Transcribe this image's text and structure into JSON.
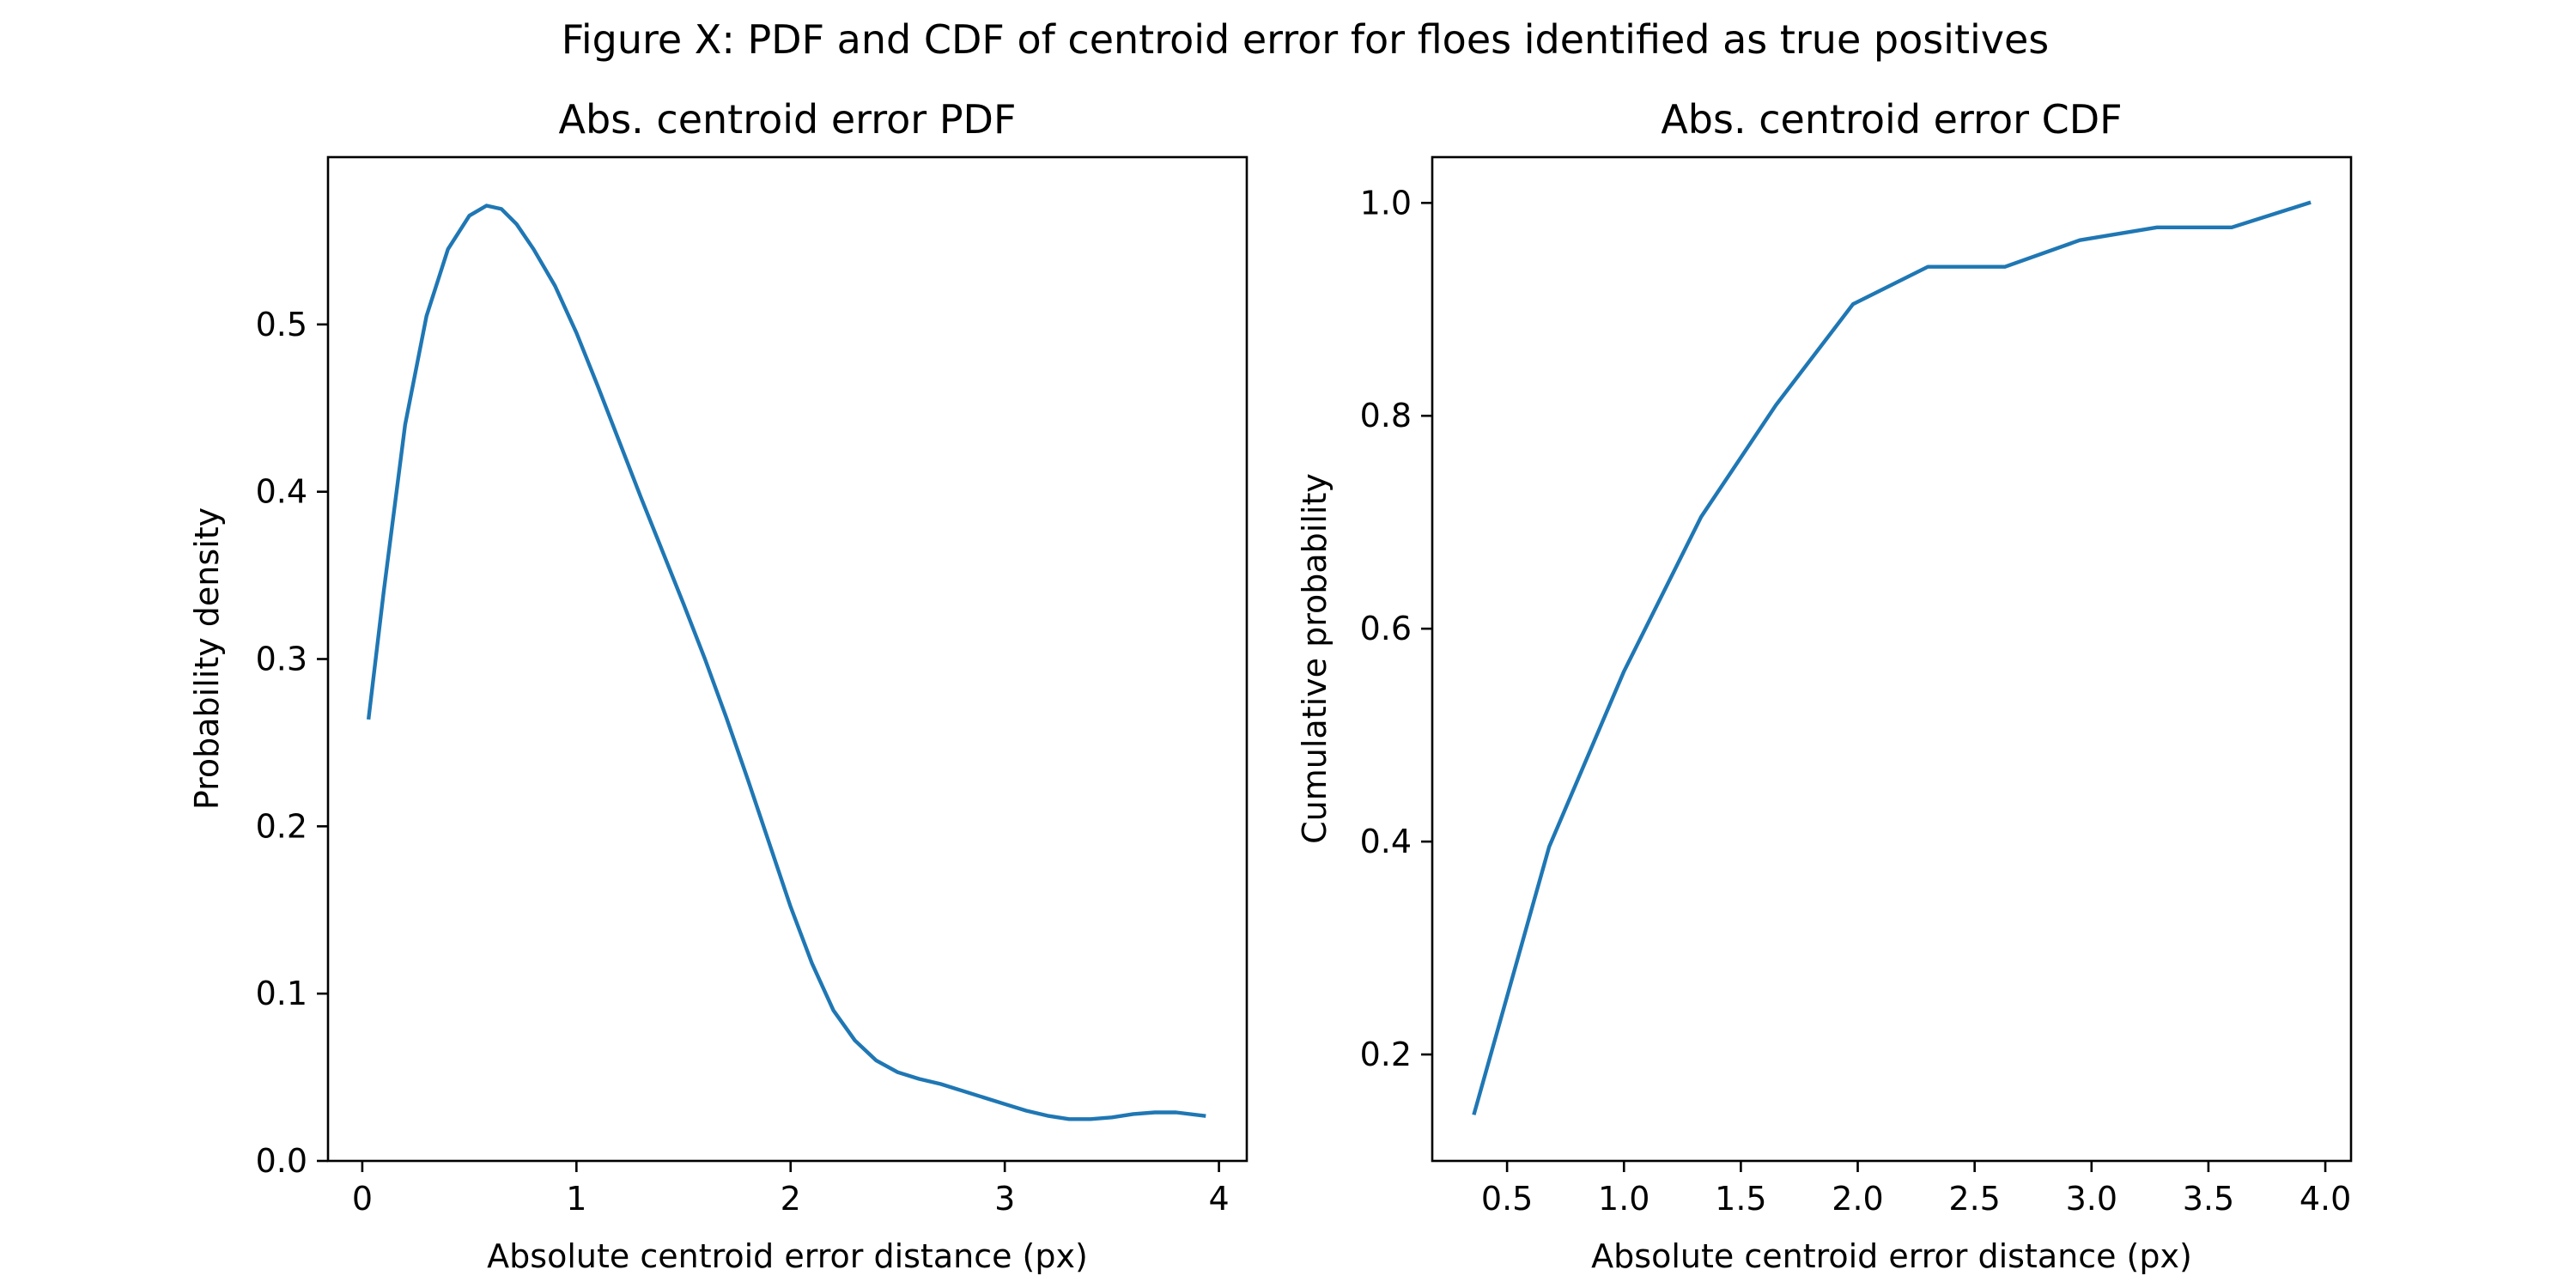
{
  "figure_title": "Figure X: PDF and CDF of centroid error for floes identified as true positives",
  "colors": {
    "series": "#1f77b4"
  },
  "chart_data": [
    {
      "type": "line",
      "title": "Abs. centroid error PDF",
      "xlabel": "Absolute centroid error distance (px)",
      "ylabel": "Probability density",
      "xlim": [
        -0.16,
        4.13
      ],
      "ylim": [
        0.0,
        0.6
      ],
      "xticks": [
        0,
        1,
        2,
        3,
        4
      ],
      "xtick_labels": [
        "0",
        "1",
        "2",
        "3",
        "4"
      ],
      "yticks": [
        0.0,
        0.1,
        0.2,
        0.3,
        0.4,
        0.5
      ],
      "ytick_labels": [
        "0.0",
        "0.1",
        "0.2",
        "0.3",
        "0.4",
        "0.5"
      ],
      "grid": false,
      "series": [
        {
          "x": [
            0.03,
            0.1,
            0.2,
            0.3,
            0.4,
            0.5,
            0.58,
            0.65,
            0.72,
            0.8,
            0.9,
            1.0,
            1.1,
            1.2,
            1.3,
            1.4,
            1.5,
            1.6,
            1.7,
            1.8,
            1.9,
            2.0,
            2.1,
            2.2,
            2.3,
            2.4,
            2.5,
            2.6,
            2.7,
            2.8,
            2.9,
            3.0,
            3.1,
            3.2,
            3.3,
            3.4,
            3.5,
            3.6,
            3.7,
            3.8,
            3.93
          ],
          "y": [
            0.265,
            0.34,
            0.44,
            0.505,
            0.545,
            0.565,
            0.571,
            0.569,
            0.56,
            0.545,
            0.523,
            0.495,
            0.463,
            0.43,
            0.397,
            0.365,
            0.333,
            0.3,
            0.265,
            0.228,
            0.19,
            0.152,
            0.118,
            0.09,
            0.072,
            0.06,
            0.053,
            0.049,
            0.046,
            0.042,
            0.038,
            0.034,
            0.03,
            0.027,
            0.025,
            0.025,
            0.026,
            0.028,
            0.029,
            0.029,
            0.027
          ]
        }
      ]
    },
    {
      "type": "line",
      "title": "Abs. centroid error CDF",
      "xlabel": "Absolute centroid error distance (px)",
      "ylabel": "Cumulative probability",
      "xlim": [
        0.18,
        4.11
      ],
      "ylim": [
        0.1,
        1.043
      ],
      "xticks": [
        0.5,
        1.0,
        1.5,
        2.0,
        2.5,
        3.0,
        3.5,
        4.0
      ],
      "xtick_labels": [
        "0.5",
        "1.0",
        "1.5",
        "2.0",
        "2.5",
        "3.0",
        "3.5",
        "4.0"
      ],
      "yticks": [
        0.2,
        0.4,
        0.6,
        0.8,
        1.0
      ],
      "ytick_labels": [
        "0.2",
        "0.4",
        "0.6",
        "0.8",
        "1.0"
      ],
      "grid": false,
      "series": [
        {
          "x": [
            0.36,
            0.68,
            1.0,
            1.33,
            1.65,
            1.98,
            2.3,
            2.63,
            2.95,
            3.28,
            3.6,
            3.93
          ],
          "y": [
            0.145,
            0.395,
            0.56,
            0.705,
            0.81,
            0.905,
            0.94,
            0.94,
            0.965,
            0.977,
            0.977,
            1.0
          ]
        }
      ]
    }
  ]
}
